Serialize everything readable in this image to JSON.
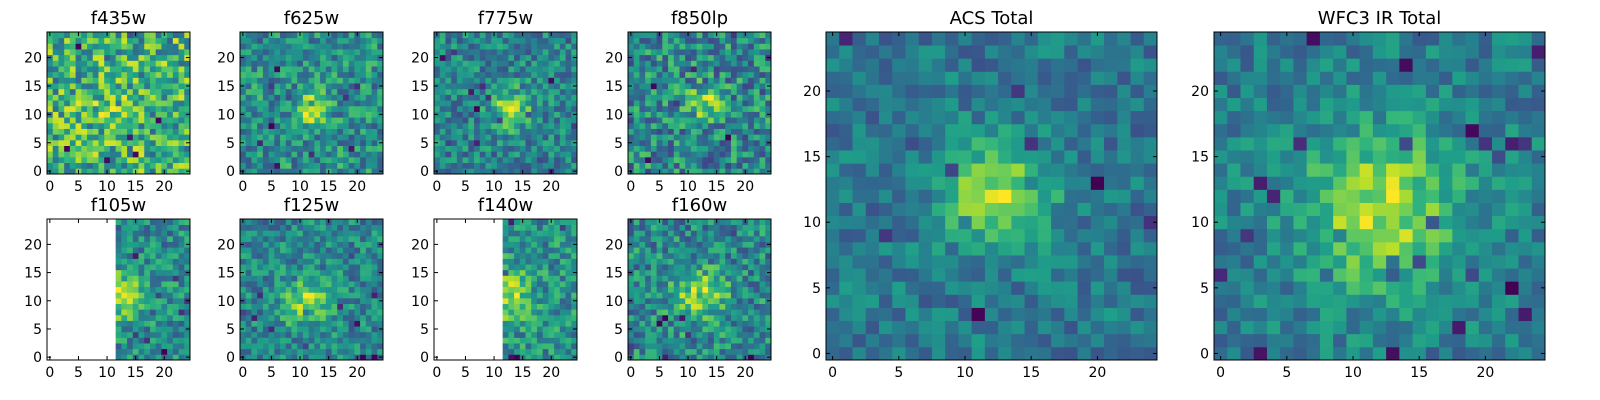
{
  "figure": {
    "background": "#ffffff",
    "colormap": "viridis",
    "masked_color": "#ffffff"
  },
  "chart_data": [
    {
      "type": "heatmap",
      "title": "f435w",
      "xlim": [
        -0.5,
        24.5
      ],
      "ylim": [
        -0.5,
        24.5
      ],
      "xticks": [
        0,
        5,
        10,
        15,
        20
      ],
      "yticks": [
        0,
        5,
        10,
        15,
        20
      ],
      "grid_size": [
        25,
        25
      ],
      "source": {
        "amp": 0.15,
        "cx": 11,
        "cy": 10,
        "sigma": 3.2
      },
      "noise": 0.55,
      "seed": 11,
      "mask_x_below": null,
      "colorscale": "viridis"
    },
    {
      "type": "heatmap",
      "title": "f625w",
      "xlim": [
        -0.5,
        24.5
      ],
      "ylim": [
        -0.5,
        24.5
      ],
      "xticks": [
        0,
        5,
        10,
        15,
        20
      ],
      "yticks": [
        0,
        5,
        10,
        15,
        20
      ],
      "grid_size": [
        25,
        25
      ],
      "source": {
        "amp": 0.85,
        "cx": 12,
        "cy": 11,
        "sigma": 2.0
      },
      "noise": 0.5,
      "seed": 23,
      "mask_x_below": null,
      "colorscale": "viridis"
    },
    {
      "type": "heatmap",
      "title": "f775w",
      "xlim": [
        -0.5,
        24.5
      ],
      "ylim": [
        -0.5,
        24.5
      ],
      "xticks": [
        0,
        5,
        10,
        15,
        20
      ],
      "yticks": [
        0,
        5,
        10,
        15,
        20
      ],
      "grid_size": [
        25,
        25
      ],
      "source": {
        "amp": 0.9,
        "cx": 13,
        "cy": 11,
        "sigma": 2.4
      },
      "noise": 0.45,
      "seed": 37,
      "mask_x_below": null,
      "colorscale": "viridis"
    },
    {
      "type": "heatmap",
      "title": "f850lp",
      "xlim": [
        -0.5,
        24.5
      ],
      "ylim": [
        -0.5,
        24.5
      ],
      "xticks": [
        0,
        5,
        10,
        15,
        20
      ],
      "yticks": [
        0,
        5,
        10,
        15,
        20
      ],
      "grid_size": [
        25,
        25
      ],
      "source": {
        "amp": 0.7,
        "cx": 13,
        "cy": 12,
        "sigma": 2.2
      },
      "noise": 0.55,
      "seed": 41,
      "mask_x_below": null,
      "colorscale": "viridis"
    },
    {
      "type": "heatmap",
      "title": "ACS Total",
      "xlim": [
        -0.5,
        24.5
      ],
      "ylim": [
        -0.5,
        24.5
      ],
      "xticks": [
        0,
        5,
        10,
        15,
        20
      ],
      "yticks": [
        0,
        5,
        10,
        15,
        20
      ],
      "grid_size": [
        25,
        25
      ],
      "source": {
        "amp": 1.0,
        "cx": 12.5,
        "cy": 12,
        "sigma": 2.8
      },
      "noise": 0.32,
      "seed": 53,
      "mask_x_below": null,
      "colorscale": "viridis"
    },
    {
      "type": "heatmap",
      "title": "WFC3 IR Total",
      "xlim": [
        -0.5,
        24.5
      ],
      "ylim": [
        -0.5,
        24.5
      ],
      "xticks": [
        0,
        5,
        10,
        15,
        20
      ],
      "yticks": [
        0,
        5,
        10,
        15,
        20
      ],
      "grid_size": [
        25,
        25
      ],
      "source": {
        "amp": 0.95,
        "cx": 12,
        "cy": 11,
        "sigma": 4.2
      },
      "noise": 0.32,
      "seed": 67,
      "mask_x_below": null,
      "colorscale": "viridis"
    },
    {
      "type": "heatmap",
      "title": "f105w",
      "xlim": [
        -0.5,
        24.5
      ],
      "ylim": [
        -0.5,
        24.5
      ],
      "xticks": [
        0,
        5,
        10,
        15,
        20
      ],
      "yticks": [
        0,
        5,
        10,
        15,
        20
      ],
      "grid_size": [
        25,
        25
      ],
      "source": {
        "amp": 0.8,
        "cx": 12,
        "cy": 11,
        "sigma": 3.0
      },
      "noise": 0.45,
      "seed": 71,
      "mask_x_below": 11.5,
      "colorscale": "viridis"
    },
    {
      "type": "heatmap",
      "title": "f125w",
      "xlim": [
        -0.5,
        24.5
      ],
      "ylim": [
        -0.5,
        24.5
      ],
      "xticks": [
        0,
        5,
        10,
        15,
        20
      ],
      "yticks": [
        0,
        5,
        10,
        15,
        20
      ],
      "grid_size": [
        25,
        25
      ],
      "source": {
        "amp": 0.8,
        "cx": 11,
        "cy": 10,
        "sigma": 3.0
      },
      "noise": 0.45,
      "seed": 83,
      "mask_x_below": null,
      "colorscale": "viridis"
    },
    {
      "type": "heatmap",
      "title": "f140w",
      "xlim": [
        -0.5,
        24.5
      ],
      "ylim": [
        -0.5,
        24.5
      ],
      "xticks": [
        0,
        5,
        10,
        15,
        20
      ],
      "yticks": [
        0,
        5,
        10,
        15,
        20
      ],
      "grid_size": [
        25,
        25
      ],
      "source": {
        "amp": 0.8,
        "cx": 12,
        "cy": 11,
        "sigma": 3.0
      },
      "noise": 0.45,
      "seed": 97,
      "mask_x_below": 11.5,
      "colorscale": "viridis"
    },
    {
      "type": "heatmap",
      "title": "f160w",
      "xlim": [
        -0.5,
        24.5
      ],
      "ylim": [
        -0.5,
        24.5
      ],
      "xticks": [
        0,
        5,
        10,
        15,
        20
      ],
      "yticks": [
        0,
        5,
        10,
        15,
        20
      ],
      "grid_size": [
        25,
        25
      ],
      "source": {
        "amp": 0.75,
        "cx": 12,
        "cy": 11,
        "sigma": 3.2
      },
      "noise": 0.5,
      "seed": 101,
      "mask_x_below": null,
      "colorscale": "viridis"
    }
  ]
}
